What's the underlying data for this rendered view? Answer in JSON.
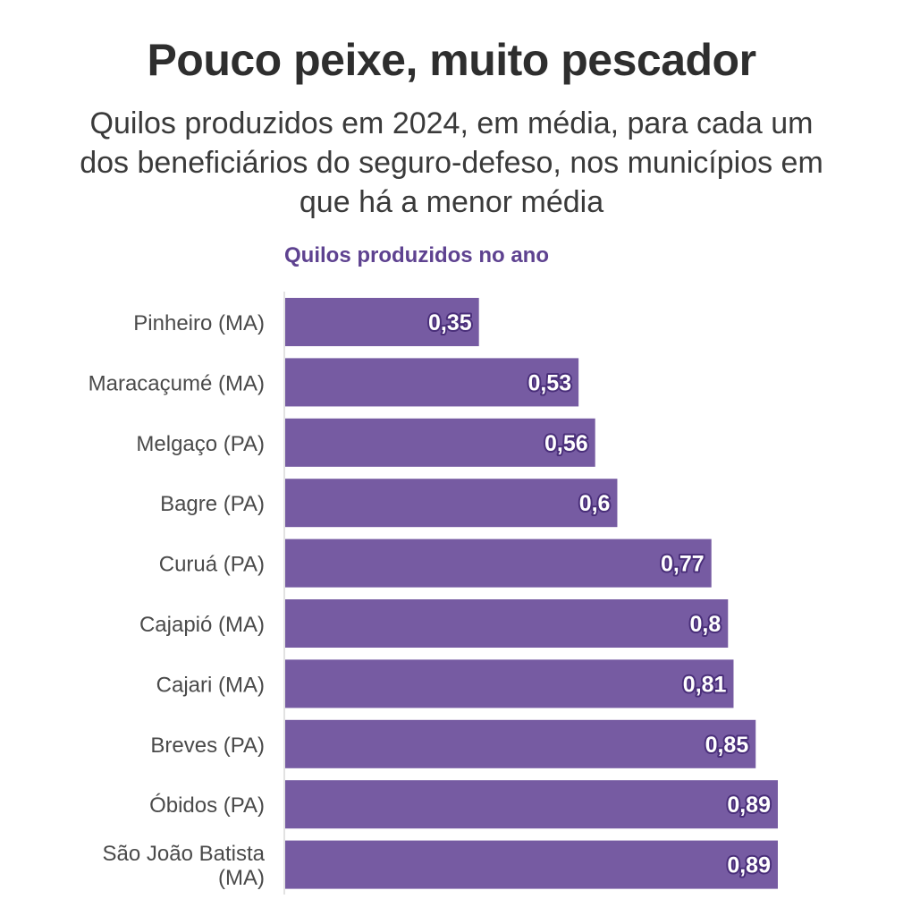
{
  "chart_data": {
    "type": "bar",
    "orientation": "horizontal",
    "title": "Pouco peixe, muito pescador",
    "subtitle": "Quilos produzidos em 2024, em média, para cada um dos beneficiários do seguro-defeso, nos municípios em que há a menor média",
    "xlabel": "Quilos produzidos no ano",
    "ylabel": "",
    "categories": [
      "Pinheiro (MA)",
      "Maracaçumé (MA)",
      "Melgaço (PA)",
      "Bagre (PA)",
      "Curuá (PA)",
      "Cajapió (MA)",
      "Cajari (MA)",
      "Breves (PA)",
      "Óbidos (PA)",
      "São João Batista (MA)"
    ],
    "category_lines": [
      [
        "Pinheiro (MA)"
      ],
      [
        "Maracaçumé (MA)"
      ],
      [
        "Melgaço (PA)"
      ],
      [
        "Bagre (PA)"
      ],
      [
        "Curuá (PA)"
      ],
      [
        "Cajapió (MA)"
      ],
      [
        "Cajari (MA)"
      ],
      [
        "Breves (PA)"
      ],
      [
        "Óbidos (PA)"
      ],
      [
        "São João Batista",
        "(MA)"
      ]
    ],
    "values": [
      0.35,
      0.53,
      0.56,
      0.6,
      0.77,
      0.8,
      0.81,
      0.85,
      0.89,
      0.89
    ],
    "value_labels": [
      "0,35",
      "0,53",
      "0,56",
      "0,6",
      "0,77",
      "0,8",
      "0,81",
      "0,85",
      "0,89",
      "0,89"
    ],
    "xlim": [
      0,
      0.89
    ],
    "grid": false,
    "legend": "none",
    "bar_color": "#765ba2"
  }
}
